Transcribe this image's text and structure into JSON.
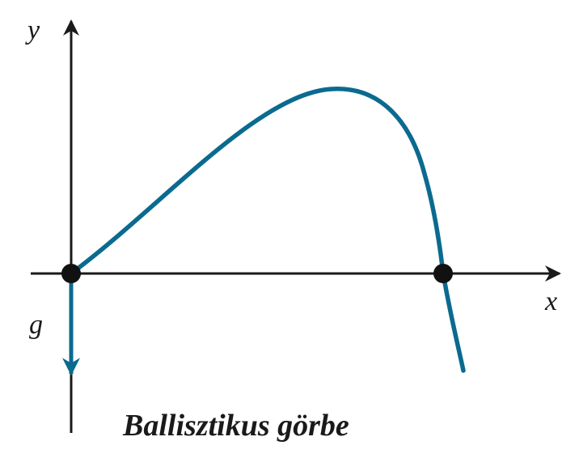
{
  "labels": {
    "y_axis": "y",
    "x_axis": "x",
    "gravity": "g",
    "caption": "Ballisztikus görbe"
  },
  "colors": {
    "curve": "#0b6a8f",
    "axes": "#1a1a1a",
    "points": "#111111",
    "background": "#ffffff"
  }
}
